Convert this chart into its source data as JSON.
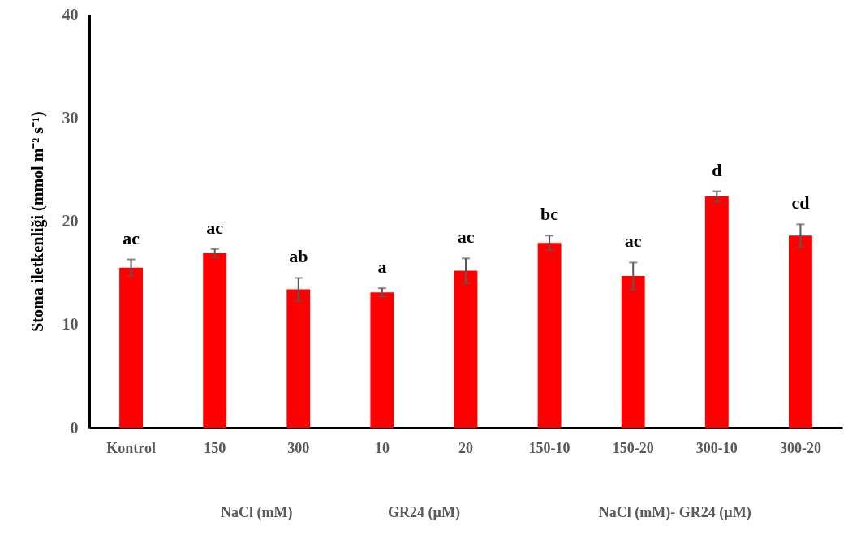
{
  "chart_data": {
    "type": "bar",
    "ylabel": "Stoma iletkenliği (mmol m⁻² s⁻¹)",
    "categories": [
      "Kontrol",
      "150",
      "300",
      "10",
      "20",
      "150-10",
      "150-20",
      "300-10",
      "300-20"
    ],
    "values": [
      15.5,
      16.9,
      13.4,
      13.1,
      15.2,
      17.9,
      14.7,
      22.4,
      18.6
    ],
    "errors": [
      0.8,
      0.4,
      1.1,
      0.4,
      1.2,
      0.7,
      1.3,
      0.5,
      1.1
    ],
    "color": "#ff0000",
    "ylim": [
      0,
      40
    ],
    "yticks": [
      0,
      10,
      20,
      30,
      40
    ],
    "grid": false,
    "annotations": [
      {
        "text": "ac",
        "x": "Kontrol",
        "y": 16.3
      },
      {
        "text": "ac",
        "x": "150",
        "y": 17.3
      },
      {
        "text": "ab",
        "x": "300",
        "y": 14.5
      },
      {
        "text": "a",
        "x": "10",
        "y": 13.5
      },
      {
        "text": "ac",
        "x": "20",
        "y": 16.4
      },
      {
        "text": "bc",
        "x": "150-10",
        "y": 18.6
      },
      {
        "text": "ac",
        "x": "150-20",
        "y": 16.0
      },
      {
        "text": "d",
        "x": "300-10",
        "y": 22.9
      },
      {
        "text": "cd",
        "x": "300-20",
        "y": 19.7
      },
      "NaCl (mM)",
      "GR24 (µM)",
      "NaCl (mM)- GR24 (µM)"
    ]
  }
}
